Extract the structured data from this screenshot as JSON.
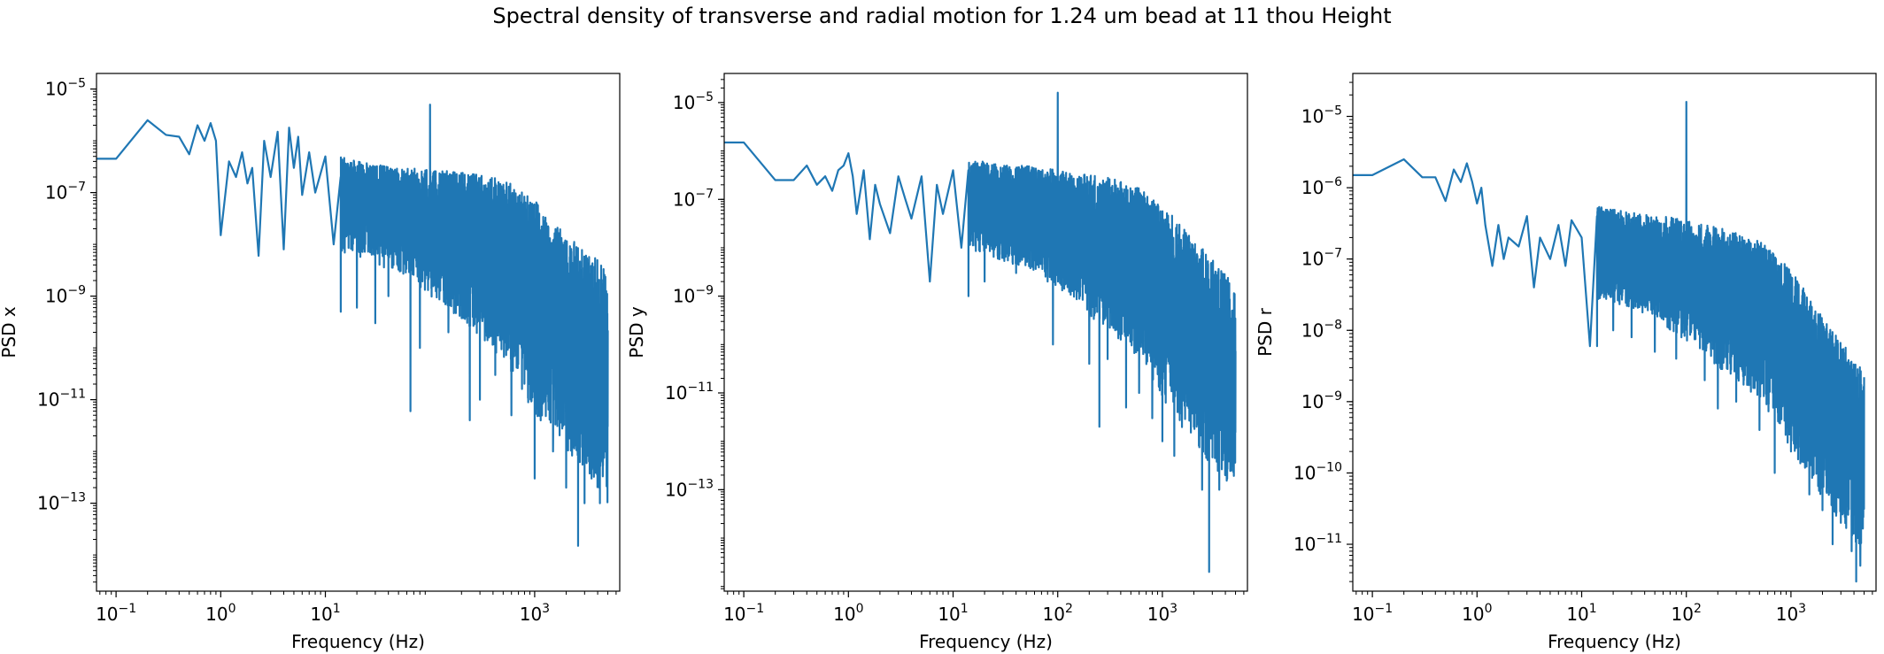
{
  "figure": {
    "title": "Spectral density of transverse and radial motion for 1.24 um bead at 11 thou Height"
  },
  "colors": {
    "series": "#1f77b4",
    "axes": "#000000",
    "background": "#ffffff"
  },
  "chart_data": [
    {
      "type": "line",
      "xlabel": "Frequency (Hz)",
      "ylabel": "PSD x",
      "xscale": "log",
      "yscale": "log",
      "xlim": [
        0.065,
        6500
      ],
      "ylim": [
        2e-15,
        2e-05
      ],
      "grid": false,
      "xticks": [
        {
          "value": 0.1,
          "mant": "10",
          "exp": "−1"
        },
        {
          "value": 1,
          "mant": "10",
          "exp": "0"
        },
        {
          "value": 10,
          "mant": "10",
          "exp": "1"
        },
        {
          "value": 1000,
          "mant": "10",
          "exp": "3"
        }
      ],
      "yticks": [
        {
          "value": 1e-13,
          "mant": "10",
          "exp": "−13"
        },
        {
          "value": 1e-11,
          "mant": "10",
          "exp": "−11"
        },
        {
          "value": 1e-09,
          "mant": "10",
          "exp": "−9"
        },
        {
          "value": 1e-07,
          "mant": "10",
          "exp": "−7"
        },
        {
          "value": 1e-05,
          "mant": "10",
          "exp": "−5"
        }
      ],
      "series": [
        {
          "points": [
            [
              0.05,
              4.5e-07
            ],
            [
              0.1,
              4.5e-07
            ],
            [
              0.2,
              2.5e-06
            ],
            [
              0.3,
              1.3e-06
            ],
            [
              0.4,
              1.2e-06
            ],
            [
              0.5,
              5.5e-07
            ],
            [
              0.6,
              2e-06
            ],
            [
              0.7,
              1e-06
            ],
            [
              0.8,
              2.2e-06
            ],
            [
              0.9,
              1e-06
            ],
            [
              1.0,
              1.5e-08
            ],
            [
              1.2,
              4e-07
            ],
            [
              1.4,
              2e-07
            ],
            [
              1.6,
              6e-07
            ],
            [
              1.8,
              1.5e-07
            ],
            [
              2.0,
              3e-07
            ],
            [
              2.3,
              6e-09
            ],
            [
              2.6,
              1e-06
            ],
            [
              3.0,
              2e-07
            ],
            [
              3.5,
              1.5e-06
            ],
            [
              4.0,
              8e-09
            ],
            [
              4.5,
              1.8e-06
            ],
            [
              5.0,
              3e-07
            ],
            [
              5.5,
              1.2e-06
            ],
            [
              6.0,
              9e-08
            ],
            [
              7.0,
              6e-07
            ],
            [
              8.0,
              1e-07
            ],
            [
              10,
              5e-07
            ],
            [
              12,
              1e-08
            ],
            [
              14,
              2e-07
            ]
          ]
        }
      ],
      "envelope": {
        "freq": [
          10,
          20,
          30,
          50,
          70,
          100,
          150,
          200,
          300,
          500,
          700,
          1000,
          1500,
          2000,
          3000,
          4000,
          5000
        ],
        "upper": [
          6e-07,
          4e-07,
          3.5e-07,
          3e-07,
          3e-07,
          2.7e-07,
          2.6e-07,
          2.5e-07,
          2.2e-07,
          1.8e-07,
          1.2e-07,
          7e-08,
          3e-08,
          1.5e-08,
          8e-09,
          5e-09,
          3e-09
        ],
        "lower": [
          8e-09,
          6e-09,
          4e-09,
          3e-09,
          2e-09,
          1e-09,
          6e-10,
          3e-10,
          1.5e-10,
          6e-11,
          2e-11,
          5e-12,
          2e-12,
          1e-12,
          5e-13,
          2e-13,
          1e-13
        ]
      },
      "spikes": [
        {
          "f": 100,
          "v": 5e-06
        }
      ],
      "dips": [
        [
          12,
          5e-10
        ],
        [
          20,
          6e-10
        ],
        [
          30,
          3e-10
        ],
        [
          40,
          1e-09
        ],
        [
          65,
          6e-12
        ],
        [
          80,
          1e-10
        ],
        [
          150,
          2e-10
        ],
        [
          240,
          4e-12
        ],
        [
          300,
          1e-11
        ],
        [
          420,
          3e-11
        ],
        [
          600,
          5e-12
        ],
        [
          900,
          2e-11
        ],
        [
          1000,
          3e-13
        ],
        [
          1500,
          1e-12
        ],
        [
          2000,
          2e-13
        ],
        [
          2600,
          1.5e-14
        ],
        [
          3000,
          1e-13
        ],
        [
          3500,
          3e-13
        ],
        [
          4200,
          1e-13
        ]
      ]
    },
    {
      "type": "line",
      "xlabel": "Frequency (Hz)",
      "ylabel": "PSD y",
      "xscale": "log",
      "yscale": "log",
      "xlim": [
        0.065,
        6500
      ],
      "ylim": [
        8e-16,
        4e-05
      ],
      "grid": false,
      "xticks": [
        {
          "value": 0.1,
          "mant": "10",
          "exp": "−1"
        },
        {
          "value": 1,
          "mant": "10",
          "exp": "0"
        },
        {
          "value": 10,
          "mant": "10",
          "exp": "1"
        },
        {
          "value": 100,
          "mant": "10",
          "exp": "2"
        },
        {
          "value": 1000,
          "mant": "10",
          "exp": "3"
        }
      ],
      "yticks": [
        {
          "value": 1e-13,
          "mant": "10",
          "exp": "−13"
        },
        {
          "value": 1e-11,
          "mant": "10",
          "exp": "−11"
        },
        {
          "value": 1e-09,
          "mant": "10",
          "exp": "−9"
        },
        {
          "value": 1e-07,
          "mant": "10",
          "exp": "−7"
        },
        {
          "value": 1e-05,
          "mant": "10",
          "exp": "−5"
        }
      ],
      "series": [
        {
          "points": [
            [
              0.05,
              1.5e-06
            ],
            [
              0.1,
              1.5e-06
            ],
            [
              0.2,
              2.5e-07
            ],
            [
              0.3,
              2.5e-07
            ],
            [
              0.4,
              5e-07
            ],
            [
              0.5,
              2e-07
            ],
            [
              0.6,
              3e-07
            ],
            [
              0.7,
              1.5e-07
            ],
            [
              0.8,
              4e-07
            ],
            [
              0.9,
              5e-07
            ],
            [
              1.0,
              9e-07
            ],
            [
              1.1,
              3e-07
            ],
            [
              1.2,
              5e-08
            ],
            [
              1.4,
              4e-07
            ],
            [
              1.6,
              1.5e-08
            ],
            [
              1.8,
              2e-07
            ],
            [
              2.0,
              8e-08
            ],
            [
              2.5,
              2e-08
            ],
            [
              3.0,
              3e-07
            ],
            [
              3.5,
              1e-07
            ],
            [
              4.0,
              4e-08
            ],
            [
              5.0,
              3e-07
            ],
            [
              6.0,
              2e-09
            ],
            [
              7.0,
              2e-07
            ],
            [
              8.0,
              5e-08
            ],
            [
              10,
              4e-07
            ],
            [
              12,
              1e-08
            ],
            [
              14,
              4e-07
            ]
          ]
        }
      ],
      "envelope": {
        "freq": [
          10,
          20,
          30,
          50,
          70,
          100,
          150,
          200,
          300,
          500,
          700,
          1000,
          1500,
          2000,
          3000,
          4000,
          5000
        ],
        "upper": [
          7e-07,
          6e-07,
          5e-07,
          5e-07,
          4.5e-07,
          4e-07,
          3.5e-07,
          3.2e-07,
          2.8e-07,
          2.2e-07,
          1.5e-07,
          8e-08,
          3e-08,
          1.5e-08,
          6e-09,
          3e-09,
          1.5e-09
        ],
        "lower": [
          1e-08,
          8e-09,
          5e-09,
          4e-09,
          3e-09,
          1.5e-09,
          8e-10,
          4e-10,
          2e-10,
          8e-11,
          3e-11,
          8e-12,
          2e-12,
          8e-13,
          3e-13,
          1.5e-13,
          1e-13
        ]
      },
      "spikes": [
        {
          "f": 100,
          "v": 1.6e-05
        }
      ],
      "dips": [
        [
          12,
          1e-09
        ],
        [
          20,
          2e-09
        ],
        [
          40,
          3e-09
        ],
        [
          80,
          2e-09
        ],
        [
          90,
          1e-10
        ],
        [
          100,
          3e-11
        ],
        [
          200,
          4e-11
        ],
        [
          250,
          2e-12
        ],
        [
          300,
          5e-11
        ],
        [
          450,
          5e-12
        ],
        [
          600,
          1e-11
        ],
        [
          800,
          3e-12
        ],
        [
          1000,
          1e-12
        ],
        [
          1300,
          5e-13
        ],
        [
          2000,
          2e-12
        ],
        [
          2400,
          1e-13
        ],
        [
          2800,
          2e-15
        ],
        [
          3500,
          1e-13
        ],
        [
          4500,
          3e-13
        ]
      ]
    },
    {
      "type": "line",
      "xlabel": "Frequency (Hz)",
      "ylabel": "PSD r",
      "xscale": "log",
      "yscale": "log",
      "xlim": [
        0.065,
        6500
      ],
      "ylim": [
        2.2e-12,
        4e-05
      ],
      "grid": false,
      "xticks": [
        {
          "value": 0.1,
          "mant": "10",
          "exp": "−1"
        },
        {
          "value": 1,
          "mant": "10",
          "exp": "0"
        },
        {
          "value": 10,
          "mant": "10",
          "exp": "1"
        },
        {
          "value": 100,
          "mant": "10",
          "exp": "2"
        },
        {
          "value": 1000,
          "mant": "10",
          "exp": "3"
        }
      ],
      "yticks": [
        {
          "value": 1e-11,
          "mant": "10",
          "exp": "−11"
        },
        {
          "value": 1e-10,
          "mant": "10",
          "exp": "−10"
        },
        {
          "value": 1e-09,
          "mant": "10",
          "exp": "−9"
        },
        {
          "value": 1e-08,
          "mant": "10",
          "exp": "−8"
        },
        {
          "value": 1e-07,
          "mant": "10",
          "exp": "−7"
        },
        {
          "value": 1e-06,
          "mant": "10",
          "exp": "−6"
        },
        {
          "value": 1e-05,
          "mant": "10",
          "exp": "−5"
        }
      ],
      "series": [
        {
          "points": [
            [
              0.05,
              1.5e-06
            ],
            [
              0.1,
              1.5e-06
            ],
            [
              0.2,
              2.5e-06
            ],
            [
              0.3,
              1.4e-06
            ],
            [
              0.4,
              1.4e-06
            ],
            [
              0.5,
              6.5e-07
            ],
            [
              0.6,
              1.8e-06
            ],
            [
              0.7,
              1.2e-06
            ],
            [
              0.8,
              2.2e-06
            ],
            [
              0.9,
              1.2e-06
            ],
            [
              1.0,
              6e-07
            ],
            [
              1.1,
              1e-06
            ],
            [
              1.2,
              3e-07
            ],
            [
              1.4,
              8e-08
            ],
            [
              1.6,
              3e-07
            ],
            [
              1.8,
              1e-07
            ],
            [
              2.0,
              2e-07
            ],
            [
              2.5,
              1.5e-07
            ],
            [
              3.0,
              4e-07
            ],
            [
              3.5,
              4e-08
            ],
            [
              4.0,
              2e-07
            ],
            [
              5.0,
              1e-07
            ],
            [
              6.0,
              3e-07
            ],
            [
              7.0,
              8e-08
            ],
            [
              8.0,
              3.5e-07
            ],
            [
              10,
              2e-07
            ],
            [
              12,
              6e-09
            ],
            [
              14,
              4e-07
            ]
          ]
        }
      ],
      "envelope": {
        "freq": [
          10,
          20,
          30,
          50,
          70,
          100,
          150,
          200,
          300,
          500,
          700,
          1000,
          1500,
          2000,
          3000,
          4000,
          5000
        ],
        "upper": [
          6e-07,
          5e-07,
          4.5e-07,
          4e-07,
          4e-07,
          3.5e-07,
          3e-07,
          2.8e-07,
          2.4e-07,
          1.8e-07,
          1.2e-07,
          7e-08,
          3e-08,
          1.5e-08,
          7e-09,
          4e-09,
          2.5e-09
        ],
        "lower": [
          3e-08,
          2.5e-08,
          2e-08,
          1.5e-08,
          1e-08,
          7e-09,
          5e-09,
          3e-09,
          2e-09,
          1e-09,
          5e-10,
          2e-10,
          8e-11,
          4e-11,
          2e-11,
          1e-11,
          8e-12
        ]
      },
      "spikes": [
        {
          "f": 100,
          "v": 1.6e-05
        }
      ],
      "dips": [
        [
          12,
          6e-09
        ],
        [
          20,
          1e-08
        ],
        [
          30,
          8e-09
        ],
        [
          50,
          5e-09
        ],
        [
          80,
          4e-09
        ],
        [
          150,
          2e-09
        ],
        [
          200,
          8e-10
        ],
        [
          300,
          1e-09
        ],
        [
          500,
          4e-10
        ],
        [
          700,
          1e-10
        ],
        [
          1000,
          2e-10
        ],
        [
          1500,
          5e-11
        ],
        [
          2000,
          3e-11
        ],
        [
          2500,
          1e-11
        ],
        [
          3000,
          2e-11
        ],
        [
          3800,
          8e-12
        ],
        [
          4200,
          3e-12
        ],
        [
          4600,
          5e-12
        ]
      ]
    }
  ]
}
